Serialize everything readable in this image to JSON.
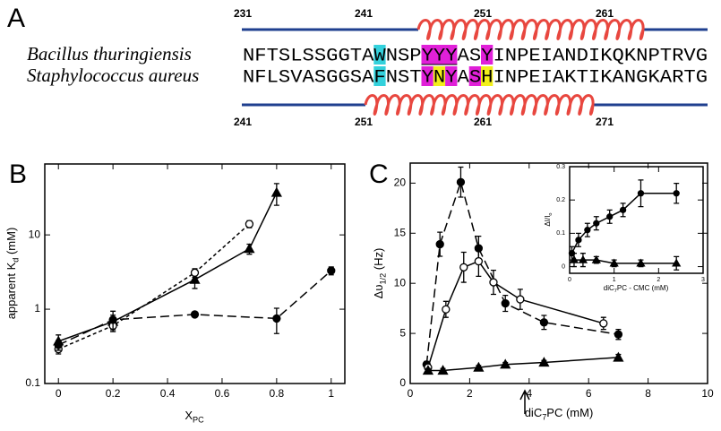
{
  "panel_a": {
    "label": "A",
    "top_numbers": [
      231,
      241,
      251,
      261
    ],
    "bottom_numbers": [
      241,
      251,
      261,
      271
    ],
    "species": [
      {
        "name": "Bacillus thuringiensis",
        "sequence": "NFTSLSSGGTAWNSPYYYASYINPEIANDIKQKNPTRVG"
      },
      {
        "name": "Staphylococcus aureus",
        "sequence": "NFLSVASGGSAFNSTYNYASHINPEIAKTIKANGKARTG"
      }
    ]
  },
  "chart_data": [
    {
      "type": "line",
      "panel_label": "B",
      "xlabel": [
        "X",
        "PC"
      ],
      "ylabel": [
        "apparent K",
        "d",
        "  (mM)"
      ],
      "xlim": [
        -0.05,
        1.05
      ],
      "ylim": [
        0.1,
        90
      ],
      "log_y": true,
      "xticks": [
        0,
        0.2,
        0.4,
        0.6,
        0.8,
        1
      ],
      "yticks": [
        0.1,
        1,
        10
      ],
      "series": [
        {
          "marker": "triangle",
          "dash": "none",
          "color": "#000000",
          "x": [
            0,
            0.2,
            0.5,
            0.7,
            0.8
          ],
          "values": [
            0.37,
            0.68,
            2.5,
            6.5,
            37
          ],
          "errors": [
            0.08,
            0.15,
            0.6,
            1.0,
            12
          ]
        },
        {
          "marker": "open-circle",
          "dash": "4 3",
          "color": "#000000",
          "x": [
            0,
            0.2,
            0.5,
            0.7
          ],
          "values": [
            0.29,
            0.6,
            3.1,
            14
          ],
          "errors": [
            0.04,
            0.1,
            0.4,
            1.5
          ]
        },
        {
          "marker": "circle",
          "dash": "10 5",
          "color": "#000000",
          "x": [
            0,
            0.2,
            0.5,
            0.8,
            1
          ],
          "values": [
            0.33,
            0.72,
            0.85,
            0.75,
            3.3
          ],
          "errors": [
            0.05,
            0.22,
            0.05,
            0.28,
            0.4
          ]
        }
      ]
    },
    {
      "type": "line",
      "panel_label": "C",
      "xlabel": [
        "diC",
        "7",
        "PC (mM)"
      ],
      "ylabel": [
        "Δυ",
        "1/2",
        "  (Hz)"
      ],
      "xlim": [
        0,
        10
      ],
      "ylim": [
        0,
        22
      ],
      "log_y": false,
      "xticks": [
        0,
        2,
        4,
        6,
        8,
        10
      ],
      "yticks": [
        0,
        5,
        10,
        15,
        20
      ],
      "series": [
        {
          "marker": "circle",
          "dash": "10 5",
          "color": "#000000",
          "x": [
            0.55,
            1.0,
            1.7,
            2.3,
            3.2,
            4.5,
            7.0
          ],
          "values": [
            1.9,
            13.9,
            20.1,
            13.5,
            8.0,
            6.1,
            4.9
          ],
          "errors": [
            0.3,
            1.2,
            1.5,
            1.2,
            0.8,
            0.7,
            0.5
          ]
        },
        {
          "marker": "open-circle",
          "dash": "none",
          "color": "#000000",
          "x": [
            0.6,
            1.2,
            1.8,
            2.3,
            2.8,
            3.7,
            6.5
          ],
          "values": [
            1.6,
            7.4,
            11.6,
            12.2,
            10.1,
            8.4,
            6.0
          ],
          "errors": [
            0.3,
            0.8,
            1.5,
            1.5,
            1.2,
            1.0,
            0.6
          ]
        },
        {
          "marker": "triangle",
          "dash": "none",
          "color": "#000000",
          "x": [
            0.6,
            1.1,
            2.3,
            3.2,
            4.5,
            7.0
          ],
          "values": [
            1.3,
            1.3,
            1.6,
            1.9,
            2.1,
            2.6
          ],
          "errors": [
            0.2,
            0.2,
            0.2,
            0.2,
            0.2,
            0.3
          ]
        }
      ]
    },
    {
      "type": "line",
      "xlabel": [
        "diC",
        "7",
        "PC - CMC  (mM)"
      ],
      "ylabel": [
        "ΔI/I",
        "o"
      ],
      "xlim": [
        0,
        3
      ],
      "ylim": [
        -0.02,
        0.3
      ],
      "log_y": false,
      "xticks": [
        0,
        1,
        2,
        3
      ],
      "yticks": [
        0,
        0.1,
        0.2,
        0.3
      ],
      "series": [
        {
          "marker": "circle",
          "dash": "none",
          "color": "#000000",
          "x": [
            0.05,
            0.2,
            0.4,
            0.6,
            0.9,
            1.2,
            1.6,
            2.4
          ],
          "values": [
            0.04,
            0.08,
            0.11,
            0.13,
            0.15,
            0.17,
            0.22,
            0.22
          ],
          "errors": [
            0.02,
            0.02,
            0.02,
            0.02,
            0.02,
            0.02,
            0.04,
            0.03
          ]
        },
        {
          "marker": "triangle",
          "dash": "none",
          "color": "#000000",
          "x": [
            0.1,
            0.3,
            0.6,
            1.0,
            1.6,
            2.4
          ],
          "values": [
            0.02,
            0.02,
            0.02,
            0.01,
            0.01,
            0.01
          ],
          "errors": [
            0.02,
            0.02,
            0.01,
            0.01,
            0.01,
            0.02
          ]
        }
      ]
    }
  ]
}
